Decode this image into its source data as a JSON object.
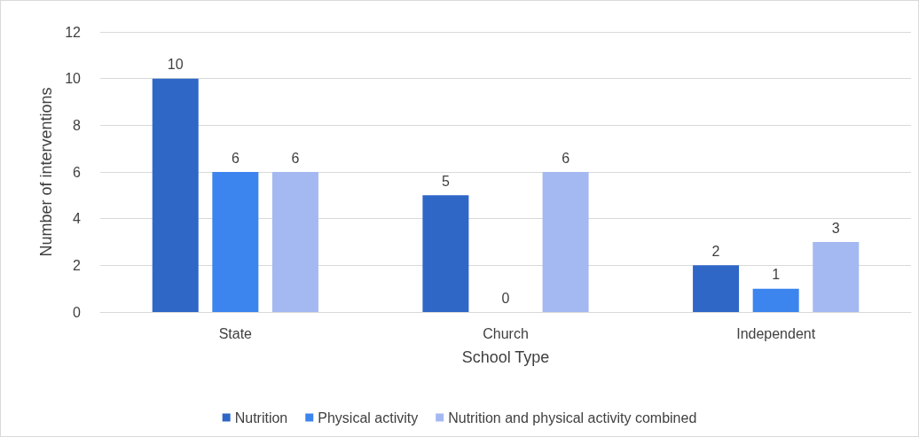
{
  "chart_data": {
    "type": "bar",
    "xlabel": "School Type",
    "ylabel": "Number of interventions",
    "categories": [
      "State",
      "Church",
      "Independent"
    ],
    "series": [
      {
        "name": "Nutrition",
        "color": "#2f67c7",
        "values": [
          10,
          5,
          2
        ]
      },
      {
        "name": "Physical activity",
        "color": "#3c84ee",
        "values": [
          6,
          0,
          1
        ]
      },
      {
        "name": "Nutrition and physical activity combined",
        "color": "#a4b9f1",
        "values": [
          6,
          6,
          3
        ]
      }
    ],
    "ylim": [
      0,
      12
    ],
    "yticks": [
      0,
      2,
      4,
      6,
      8,
      10,
      12
    ],
    "grid": "y",
    "legend": "bottom",
    "data_labels": true
  }
}
